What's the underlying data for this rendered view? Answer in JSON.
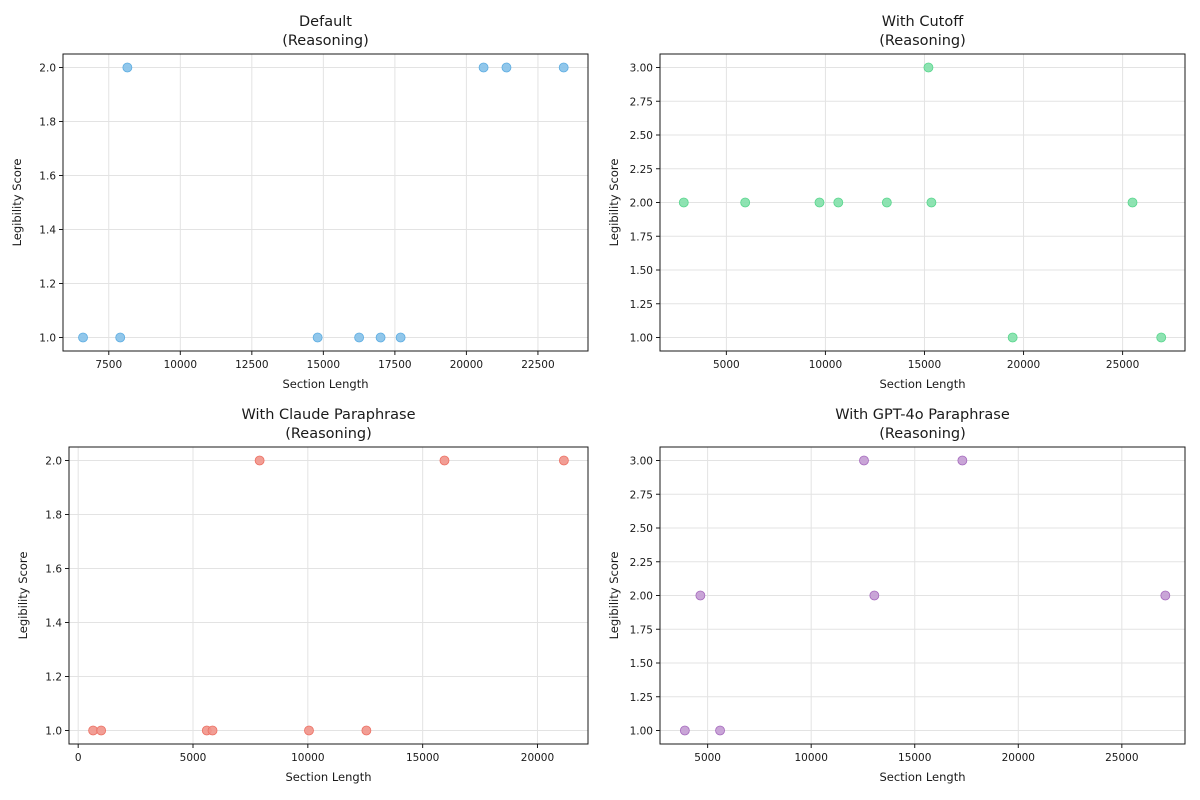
{
  "chart_data": [
    {
      "type": "scatter",
      "title": [
        "Default",
        "(Reasoning)"
      ],
      "xlabel": "Section Length",
      "ylabel": "Legibility Score",
      "xlim": [
        5900,
        24250
      ],
      "ylim": [
        0.95,
        2.05
      ],
      "xticks": [
        7500,
        10000,
        12500,
        15000,
        17500,
        20000,
        22500
      ],
      "yticks": [
        1.0,
        1.2,
        1.4,
        1.6,
        1.8,
        2.0
      ],
      "ytick_decimals": 1,
      "grid": true,
      "color": "#85c1e9",
      "stroke": "#5dade2",
      "points": [
        {
          "x": 6600,
          "y": 1
        },
        {
          "x": 7900,
          "y": 1
        },
        {
          "x": 8150,
          "y": 2
        },
        {
          "x": 14800,
          "y": 1
        },
        {
          "x": 16250,
          "y": 1
        },
        {
          "x": 17000,
          "y": 1
        },
        {
          "x": 17700,
          "y": 1
        },
        {
          "x": 20600,
          "y": 2
        },
        {
          "x": 21400,
          "y": 2
        },
        {
          "x": 23400,
          "y": 2
        }
      ]
    },
    {
      "type": "scatter",
      "title": [
        "With Cutoff",
        "(Reasoning)"
      ],
      "xlabel": "Section Length",
      "ylabel": "Legibility Score",
      "xlim": [
        1650,
        28150
      ],
      "ylim": [
        0.9,
        3.1
      ],
      "xticks": [
        5000,
        10000,
        15000,
        20000,
        25000
      ],
      "yticks": [
        1.0,
        1.25,
        1.5,
        1.75,
        2.0,
        2.25,
        2.5,
        2.75,
        3.0
      ],
      "ytick_decimals": 2,
      "grid": true,
      "color": "#82e0aa",
      "stroke": "#58d68d",
      "points": [
        {
          "x": 2850,
          "y": 2
        },
        {
          "x": 5950,
          "y": 2
        },
        {
          "x": 9700,
          "y": 2
        },
        {
          "x": 10650,
          "y": 2
        },
        {
          "x": 13100,
          "y": 2
        },
        {
          "x": 15200,
          "y": 3
        },
        {
          "x": 15350,
          "y": 2
        },
        {
          "x": 19450,
          "y": 1
        },
        {
          "x": 25500,
          "y": 2
        },
        {
          "x": 26950,
          "y": 1
        }
      ]
    },
    {
      "type": "scatter",
      "title": [
        "With Claude Paraphrase",
        "(Reasoning)"
      ],
      "xlabel": "Section Length",
      "ylabel": "Legibility Score",
      "xlim": [
        -400,
        22200
      ],
      "ylim": [
        0.95,
        2.05
      ],
      "xticks": [
        0,
        5000,
        10000,
        15000,
        20000
      ],
      "yticks": [
        1.0,
        1.2,
        1.4,
        1.6,
        1.8,
        2.0
      ],
      "ytick_decimals": 1,
      "grid": true,
      "color": "#f1948a",
      "stroke": "#ec7063",
      "points": [
        {
          "x": 650,
          "y": 1
        },
        {
          "x": 1000,
          "y": 1
        },
        {
          "x": 5600,
          "y": 1
        },
        {
          "x": 5850,
          "y": 1
        },
        {
          "x": 7900,
          "y": 2
        },
        {
          "x": 10050,
          "y": 1
        },
        {
          "x": 12550,
          "y": 1
        },
        {
          "x": 15950,
          "y": 2
        },
        {
          "x": 21150,
          "y": 2
        }
      ]
    },
    {
      "type": "scatter",
      "title": [
        "With GPT-4o Paraphrase",
        "(Reasoning)"
      ],
      "xlabel": "Section Length",
      "ylabel": "Legibility Score",
      "xlim": [
        2700,
        28050
      ],
      "ylim": [
        0.9,
        3.1
      ],
      "xticks": [
        5000,
        10000,
        15000,
        20000,
        25000
      ],
      "yticks": [
        1.0,
        1.25,
        1.5,
        1.75,
        2.0,
        2.25,
        2.5,
        2.75,
        3.0
      ],
      "ytick_decimals": 2,
      "grid": true,
      "color": "#c39bd3",
      "stroke": "#a569bd",
      "points": [
        {
          "x": 3900,
          "y": 1
        },
        {
          "x": 4650,
          "y": 2
        },
        {
          "x": 5600,
          "y": 1
        },
        {
          "x": 12550,
          "y": 3
        },
        {
          "x": 13050,
          "y": 2
        },
        {
          "x": 17300,
          "y": 3
        },
        {
          "x": 27100,
          "y": 2
        }
      ]
    }
  ]
}
